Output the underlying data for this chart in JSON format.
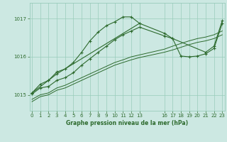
{
  "bg_color": "#cce8e2",
  "grid_color": "#99ccbb",
  "line_color": "#2d6a2d",
  "title": "Graphe pression niveau de la mer (hPa)",
  "xlim": [
    -0.3,
    23.3
  ],
  "ylim": [
    1014.58,
    1017.42
  ],
  "yticks": [
    1015,
    1016,
    1017
  ],
  "xticks": [
    0,
    1,
    2,
    3,
    4,
    5,
    6,
    7,
    8,
    9,
    10,
    11,
    12,
    13,
    16,
    17,
    18,
    19,
    20,
    21,
    22,
    23
  ],
  "curve1_x": [
    0,
    1,
    2,
    3,
    4,
    5,
    6,
    7,
    8,
    9,
    10,
    11,
    12,
    13
  ],
  "curve1_y": [
    1015.05,
    1015.28,
    1015.38,
    1015.6,
    1015.68,
    1015.85,
    1016.12,
    1016.42,
    1016.65,
    1016.82,
    1016.92,
    1017.05,
    1017.05,
    1016.88
  ],
  "curve2_x": [
    0,
    2,
    3,
    13,
    16,
    17,
    21,
    22,
    23
  ],
  "curve2_y": [
    1015.05,
    1015.38,
    1015.55,
    1016.88,
    1016.62,
    1016.48,
    1016.12,
    1016.28,
    1016.95
  ],
  "curve3_x": [
    0,
    1,
    2,
    3,
    4,
    5,
    6,
    7,
    8,
    9,
    10,
    11,
    12,
    13,
    16,
    17,
    18,
    19,
    20,
    21,
    22,
    23
  ],
  "curve3_y": [
    1015.02,
    1015.18,
    1015.22,
    1015.38,
    1015.45,
    1015.58,
    1015.78,
    1015.95,
    1016.12,
    1016.28,
    1016.45,
    1016.58,
    1016.68,
    1016.78,
    1016.55,
    1016.48,
    1016.02,
    1016.0,
    1016.02,
    1016.08,
    1016.22,
    1016.88
  ],
  "curve4_x": [
    0,
    1,
    2,
    3,
    4,
    5,
    6,
    7,
    8,
    9,
    10,
    11,
    12,
    13,
    16,
    17,
    18,
    19,
    20,
    21,
    22,
    23
  ],
  "curve4_y": [
    1014.88,
    1015.0,
    1015.05,
    1015.18,
    1015.25,
    1015.35,
    1015.45,
    1015.55,
    1015.65,
    1015.75,
    1015.85,
    1015.92,
    1016.0,
    1016.05,
    1016.2,
    1016.28,
    1016.35,
    1016.42,
    1016.48,
    1016.52,
    1016.58,
    1016.68
  ],
  "curve5_x": [
    0,
    1,
    2,
    3,
    4,
    5,
    6,
    7,
    8,
    9,
    10,
    11,
    12,
    13,
    16,
    17,
    18,
    19,
    20,
    21,
    22,
    23
  ],
  "curve5_y": [
    1014.82,
    1014.95,
    1015.0,
    1015.12,
    1015.18,
    1015.28,
    1015.38,
    1015.48,
    1015.58,
    1015.68,
    1015.78,
    1015.85,
    1015.92,
    1015.98,
    1016.12,
    1016.18,
    1016.25,
    1016.32,
    1016.38,
    1016.42,
    1016.48,
    1016.58
  ]
}
